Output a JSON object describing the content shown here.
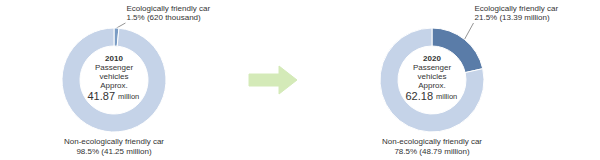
{
  "chart_data": [
    {
      "type": "donut",
      "values": [
        1.5,
        98.5
      ],
      "colors": [
        "#7a9cc4",
        "#c5d3e8"
      ],
      "data_labels": true,
      "value_labels": [
        "Ecologically friendly car\n1.5% (620 thousand)",
        "Non-ecologically friendly car\n98.5% (41.25 million)"
      ],
      "annotations": [
        "2010",
        "Passenger",
        "vehicles",
        "Approx.",
        "41.87",
        "million"
      ]
    },
    {
      "type": "donut",
      "values": [
        21.5,
        78.5
      ],
      "colors": [
        "#5a7ca8",
        "#c5d3e8"
      ],
      "data_labels": true,
      "value_labels": [
        "Ecologically friendly car\n21.5% (13.39 million)",
        "Non-ecologically friendly car\n78.5% (48.79 million)"
      ],
      "annotations": [
        "2020",
        "Passenger",
        "vehicles",
        "Approx.",
        "62.18",
        "million"
      ]
    }
  ]
}
